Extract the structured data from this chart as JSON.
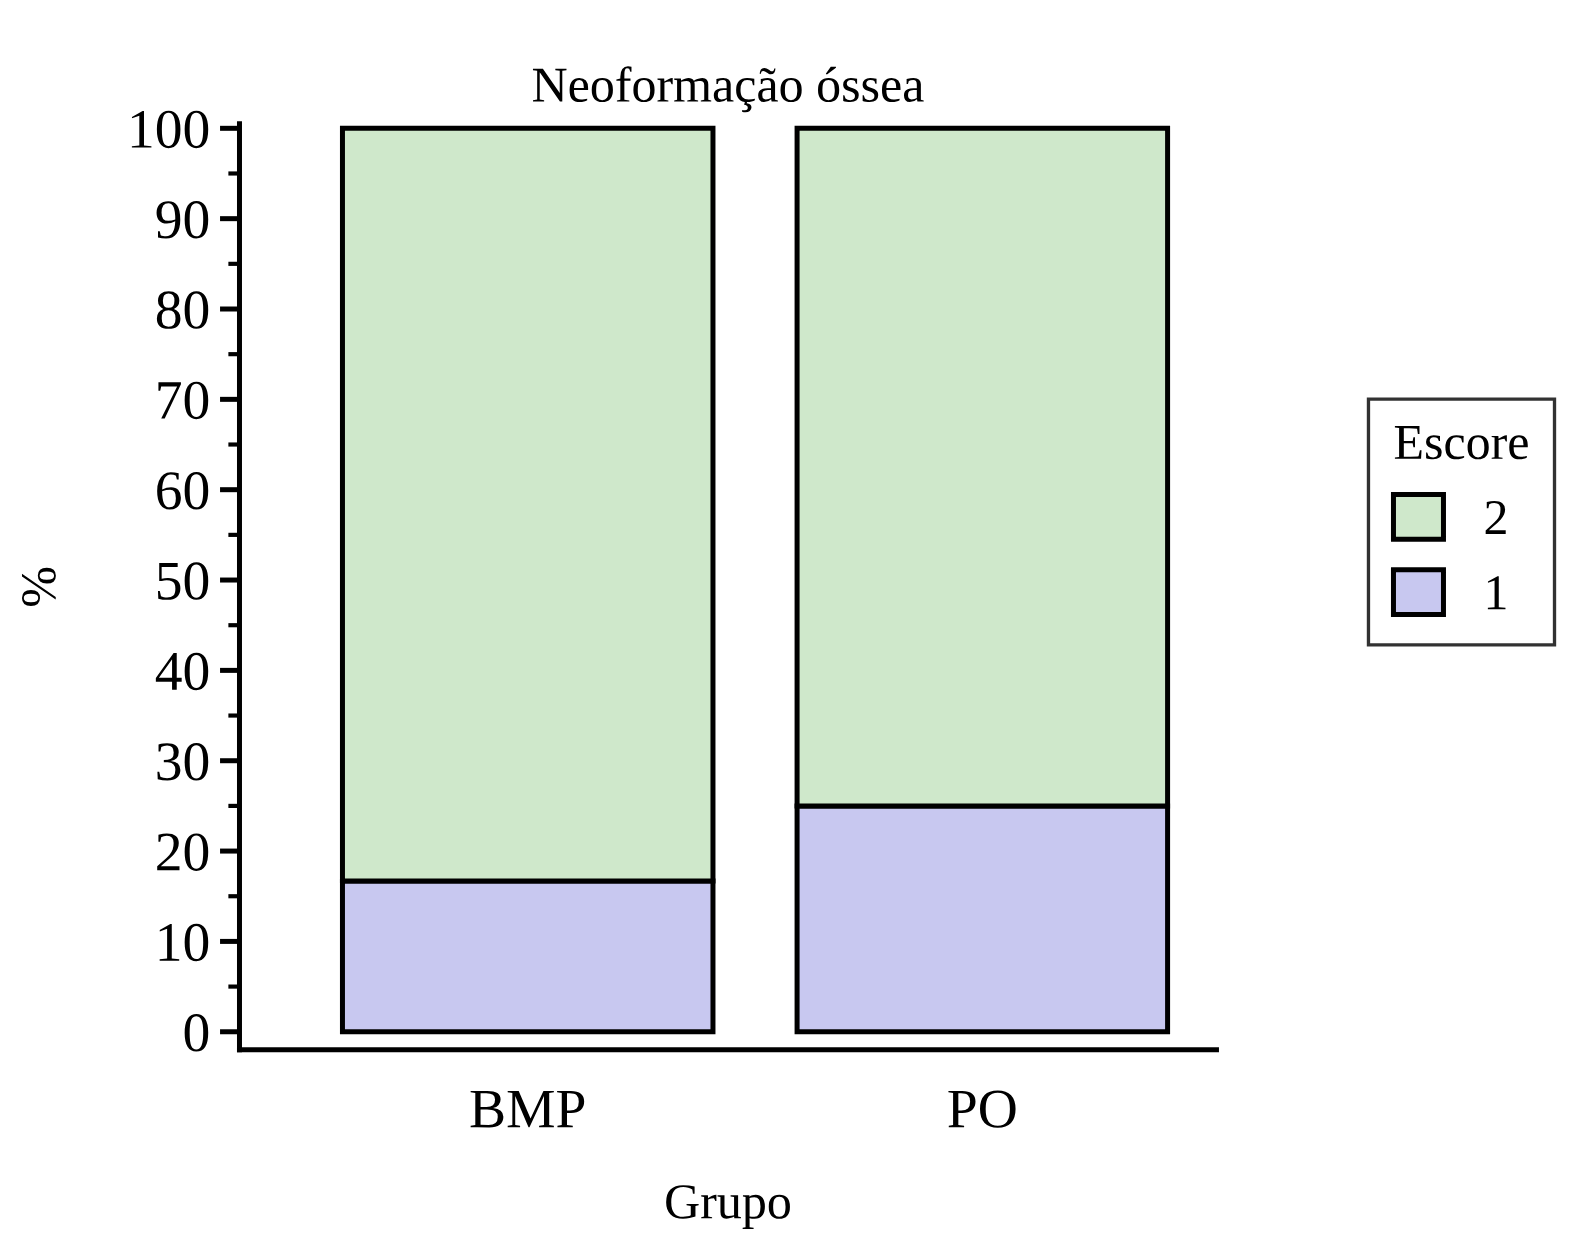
{
  "chart_data": {
    "type": "bar",
    "title": "Neoformação óssea",
    "xlabel": "Grupo",
    "ylabel": "%",
    "legend_title": "Escore",
    "categories": [
      "BMP",
      "PO"
    ],
    "stacked": true,
    "legend": "right",
    "grid": false,
    "ylim": [
      -2,
      100.5
    ],
    "yticks": [
      0,
      10,
      20,
      30,
      40,
      50,
      60,
      70,
      80,
      90,
      100
    ],
    "series": [
      {
        "name": "1",
        "color": "#c8c8f0",
        "values": [
          16.7,
          25
        ]
      },
      {
        "name": "2",
        "color": "#cfe8cb",
        "values": [
          83.3,
          75
        ]
      }
    ]
  }
}
